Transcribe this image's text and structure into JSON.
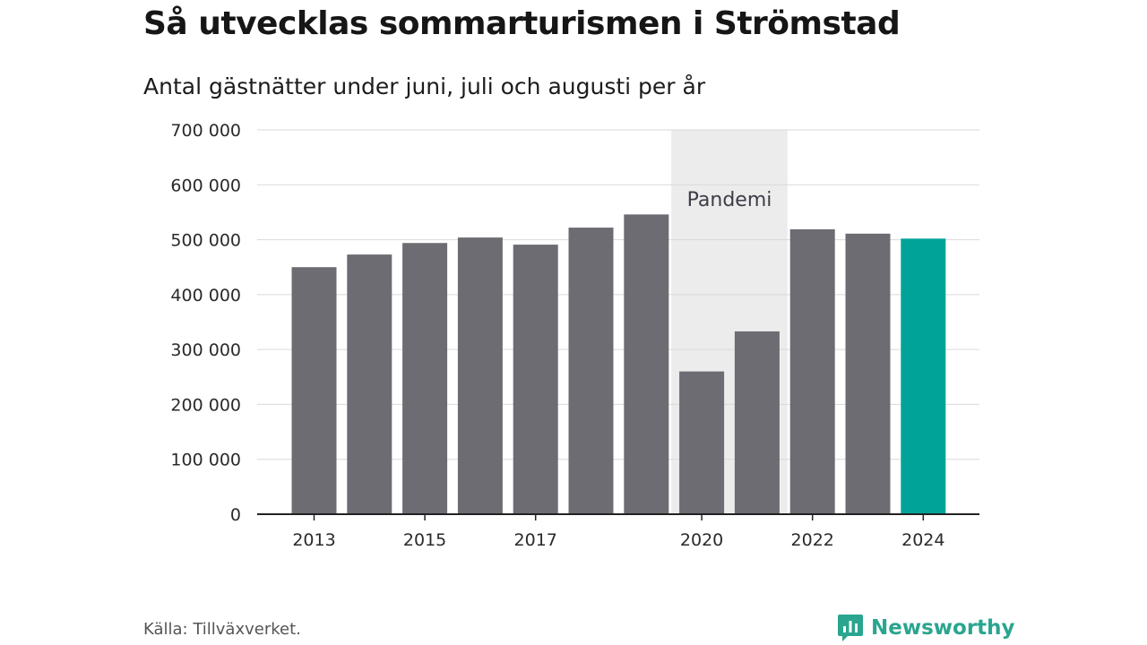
{
  "header": {
    "title": "Så utvecklas sommarturismen i Strömstad",
    "subtitle": "Antal gästnätter under juni, juli och augusti per år"
  },
  "footer": {
    "source": "Källa: Tillväxverket.",
    "brand": "Newsworthy"
  },
  "colors": {
    "bar": "#6d6c72",
    "highlight": "#00a398",
    "band": "#ececec",
    "grid": "#d9d9d9",
    "axis": "#222222",
    "brand": "#2aa58f"
  },
  "chart_data": {
    "type": "bar",
    "title": "Så utvecklas sommarturismen i Strömstad",
    "subtitle": "Antal gästnätter under juni, juli och augusti per år",
    "xlabel": "",
    "ylabel": "",
    "categories": [
      2013,
      2014,
      2015,
      2016,
      2017,
      2018,
      2019,
      2020,
      2021,
      2022,
      2023,
      2024
    ],
    "values": [
      450000,
      473000,
      494000,
      504000,
      491000,
      522000,
      546000,
      260000,
      333000,
      519000,
      511000,
      502000
    ],
    "highlight_category": 2024,
    "x_tick_labels": [
      "2013",
      "2015",
      "2017",
      "2020",
      "2022",
      "2024"
    ],
    "y_ticks": [
      0,
      100000,
      200000,
      300000,
      400000,
      500000,
      600000,
      700000
    ],
    "y_tick_labels": [
      "0",
      "100 000",
      "200 000",
      "300 000",
      "400 000",
      "500 000",
      "600 000",
      "700 000"
    ],
    "ylim": [
      0,
      700000
    ],
    "grid": true,
    "legend": "none",
    "annotation": {
      "text": "Pandemi",
      "from": 2020,
      "to": 2021
    }
  }
}
